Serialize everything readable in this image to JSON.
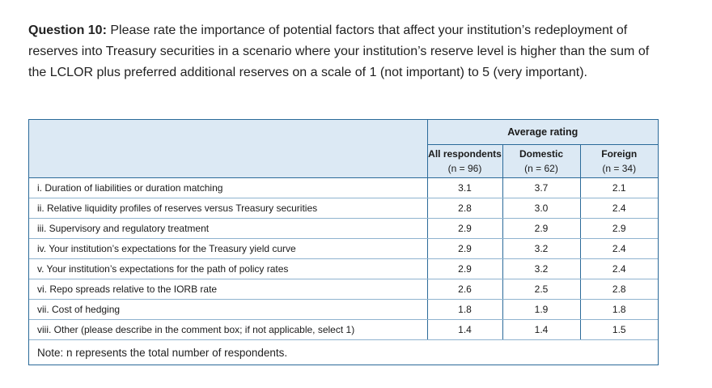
{
  "question": {
    "label": "Question 10:",
    "text": "Please rate the importance of potential factors that affect your institution’s redeployment of reserves into Treasury securities in a scenario where your institution’s reserve level is higher than the sum of the LCLOR plus preferred additional reserves on a scale of 1 (not important) to 5 (very important)."
  },
  "table": {
    "group_header": "Average rating",
    "columns": [
      {
        "name": "All respondents",
        "n": "(n = 96)"
      },
      {
        "name": "Domestic",
        "n": "(n = 62)"
      },
      {
        "name": "Foreign",
        "n": "(n = 34)"
      }
    ],
    "rows": [
      {
        "label": "i. Duration of liabilities or duration matching",
        "values": [
          "3.1",
          "3.7",
          "2.1"
        ]
      },
      {
        "label": "ii. Relative liquidity profiles of reserves versus Treasury securities",
        "values": [
          "2.8",
          "3.0",
          "2.4"
        ]
      },
      {
        "label": "iii. Supervisory and regulatory treatment",
        "values": [
          "2.9",
          "2.9",
          "2.9"
        ]
      },
      {
        "label": "iv. Your institution’s expectations for the Treasury yield curve",
        "values": [
          "2.9",
          "3.2",
          "2.4"
        ]
      },
      {
        "label": "v. Your institution’s expectations for the path of policy rates",
        "values": [
          "2.9",
          "3.2",
          "2.4"
        ]
      },
      {
        "label": "vi. Repo spreads relative to the IORB rate",
        "values": [
          "2.6",
          "2.5",
          "2.8"
        ]
      },
      {
        "label": "vii. Cost of hedging",
        "values": [
          "1.8",
          "1.9",
          "1.8"
        ]
      },
      {
        "label": "viii. Other (please describe in the comment box; if not applicable, select 1)",
        "values": [
          "1.4",
          "1.4",
          "1.5"
        ]
      }
    ],
    "note": "Note: n represents the total number of respondents."
  },
  "colors": {
    "border": "#2b6a99",
    "header_bg": "#dce9f4"
  }
}
